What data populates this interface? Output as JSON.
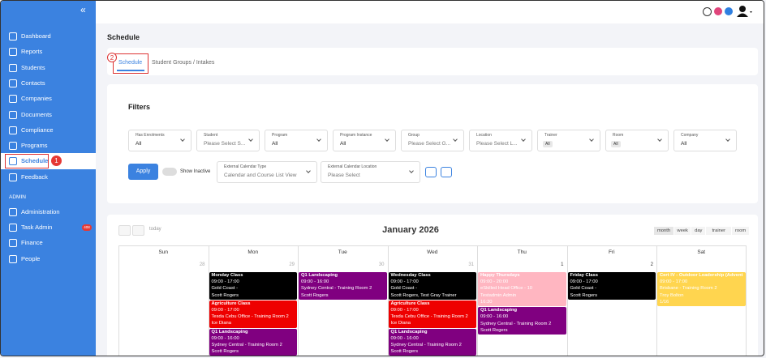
{
  "sidebar": {
    "collapse": "«",
    "menu": [
      "Dashboard",
      "Reports",
      "Students",
      "Contacts",
      "Companies",
      "Documents",
      "Compliance",
      "Programs",
      "Schedule",
      "Feedback"
    ],
    "section": "ADMIN",
    "admin_menu": [
      {
        "label": "Administration"
      },
      {
        "label": "Task Admin",
        "badge": "408"
      },
      {
        "label": "Finance"
      },
      {
        "label": "People"
      }
    ]
  },
  "annotations": [
    "1",
    "2"
  ],
  "header": {
    "title": "Schedule"
  },
  "tabs": [
    "Schedule",
    "Student Groups / Intakes"
  ],
  "filters": {
    "title": "Filters",
    "fields": [
      {
        "label": "Has Enrolments",
        "value": "All"
      },
      {
        "label": "Student",
        "value": "Please Select S..."
      },
      {
        "label": "Program",
        "value": "All"
      },
      {
        "label": "Program Instance",
        "value": "All"
      },
      {
        "label": "Group",
        "value": "Please Select G..."
      },
      {
        "label": "Location",
        "value": "Please Select L..."
      },
      {
        "label": "Trainer",
        "chip": "All"
      },
      {
        "label": "Room",
        "chip": "All"
      },
      {
        "label": "Company",
        "value": "All"
      }
    ],
    "apply": "Apply",
    "toggle": "Show Inactive",
    "extra": [
      {
        "label": "External Calendar Type",
        "value": "Calendar and Course List View"
      },
      {
        "label": "External Calendar Location",
        "value": "Please Select"
      }
    ]
  },
  "calendar": {
    "today": "today",
    "title": "January 2026",
    "views": [
      "month",
      "week",
      "day",
      "trainer",
      "room"
    ],
    "columns": [
      {
        "day": "Sun",
        "date": "28",
        "events": []
      },
      {
        "day": "Mon",
        "date": "29",
        "events": [
          {
            "title": "Monday Class",
            "color": "#000000",
            "lines": [
              "09:00 - 17:00",
              "Gold Coast -",
              "Scott Rogers"
            ]
          },
          {
            "title": "Agriculture Class",
            "color": "#ee0000",
            "lines": [
              "09:00 - 17:00",
              "Tesda Cebu Office - Training Room 2",
              "Ice Diana"
            ]
          },
          {
            "title": "Q1 Landscaping",
            "color": "#800080",
            "lines": [
              "09:00 - 16:00",
              "Sydney Central - Training Room 2",
              "Scott Rogers"
            ]
          }
        ]
      },
      {
        "day": "Tue",
        "date": "30",
        "events": [
          {
            "title": "Q1 Landscaping",
            "color": "#800080",
            "lines": [
              "09:00 - 16:00",
              "Sydney Central - Training Room 2",
              "Scott Rogers"
            ]
          }
        ]
      },
      {
        "day": "Wed",
        "date": "31",
        "events": [
          {
            "title": "Wednesday Class",
            "color": "#000000",
            "lines": [
              "09:00 - 17:00",
              "Gold Coast -",
              "Scott Rogers, Test Gray Trainer"
            ]
          },
          {
            "title": "Agriculture Class",
            "color": "#ee0000",
            "lines": [
              "09:00 - 17:00",
              "Tesda Cebu Office - Training Room 2",
              "Ice Diana"
            ]
          },
          {
            "title": "Q1 Landscaping",
            "color": "#800080",
            "lines": [
              "09:00 - 16:00",
              "Sydney Central - Training Room 2",
              "Scott Rogers"
            ]
          }
        ]
      },
      {
        "day": "Thu",
        "date": "1",
        "events": [
          {
            "title": "Happy Thursdays",
            "color": "#ffb6c1",
            "lines": [
              "09:00 - 20:00",
              "eSkilled Head Office - 10",
              "Testadmin Admin",
              "16:30"
            ]
          },
          {
            "title": "Q1 Landscaping",
            "color": "#800080",
            "lines": [
              "09:00 - 16:00",
              "Sydney Central - Training Room 2",
              "Scott Rogers"
            ]
          }
        ]
      },
      {
        "day": "Fri",
        "date": "2",
        "events": [
          {
            "title": "Friday Class",
            "color": "#000000",
            "lines": [
              "09:00 - 17:00",
              "Gold Coast -",
              "Scott Rogers"
            ]
          }
        ]
      },
      {
        "day": "Sat",
        "events": [
          {
            "title": "Cert IV - Outdoor Leadership (Advent",
            "color": "#ffd54f",
            "lines": [
              "09:00 - 17:00",
              "Brisbane - Training Room 2",
              "Troy Bolton",
              "1/16"
            ]
          }
        ]
      }
    ]
  }
}
